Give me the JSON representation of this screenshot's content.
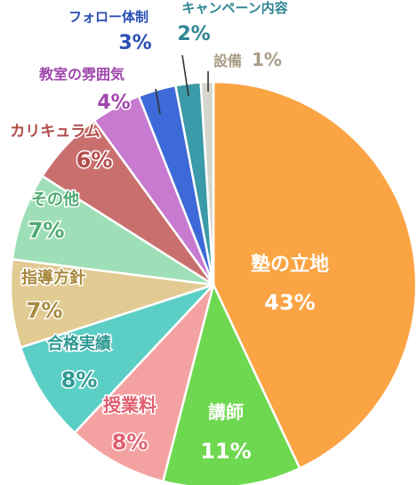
{
  "chart_data": {
    "type": "pie",
    "title": "",
    "start": "12 o'clock, clockwise",
    "slices": [
      {
        "label": "塾の立地",
        "value": 43,
        "display": "43%",
        "color": "#FBA444",
        "label_color": "#FFFFFF"
      },
      {
        "label": "講師",
        "value": 11,
        "display": "11%",
        "color": "#6ED850",
        "label_color": "#FFFFFF"
      },
      {
        "label": "授業料",
        "value": 8,
        "display": "8%",
        "color": "#F4A2A1",
        "label_color": "#E06070"
      },
      {
        "label": "合格実績",
        "value": 8,
        "display": "8%",
        "color": "#5BCFC6",
        "label_color": "#2E9A93"
      },
      {
        "label": "指導方針",
        "value": 7,
        "display": "7%",
        "color": "#E2CB92",
        "label_color": "#A8893E"
      },
      {
        "label": "その他",
        "value": 7,
        "display": "7%",
        "color": "#9EDFB7",
        "label_color": "#4DAA70"
      },
      {
        "label": "カリキュラム",
        "value": 6,
        "display": "6%",
        "color": "#C9706E",
        "label_color": "#B24C4A"
      },
      {
        "label": "教室の雰囲気",
        "value": 4,
        "display": "4%",
        "color": "#C77AD0",
        "label_color": "#A046AD"
      },
      {
        "label": "フォロー体制",
        "value": 3,
        "display": "3%",
        "color": "#3D6AD8",
        "label_color": "#2A4FB5"
      },
      {
        "label": "キャンペーン内容",
        "value": 2,
        "display": "2%",
        "color": "#3B9AA7",
        "label_color": "#2F8593"
      },
      {
        "label": "設備",
        "value": 1,
        "display": "1%",
        "color": "#D6D6CF",
        "label_color": "#A89C84"
      }
    ]
  }
}
